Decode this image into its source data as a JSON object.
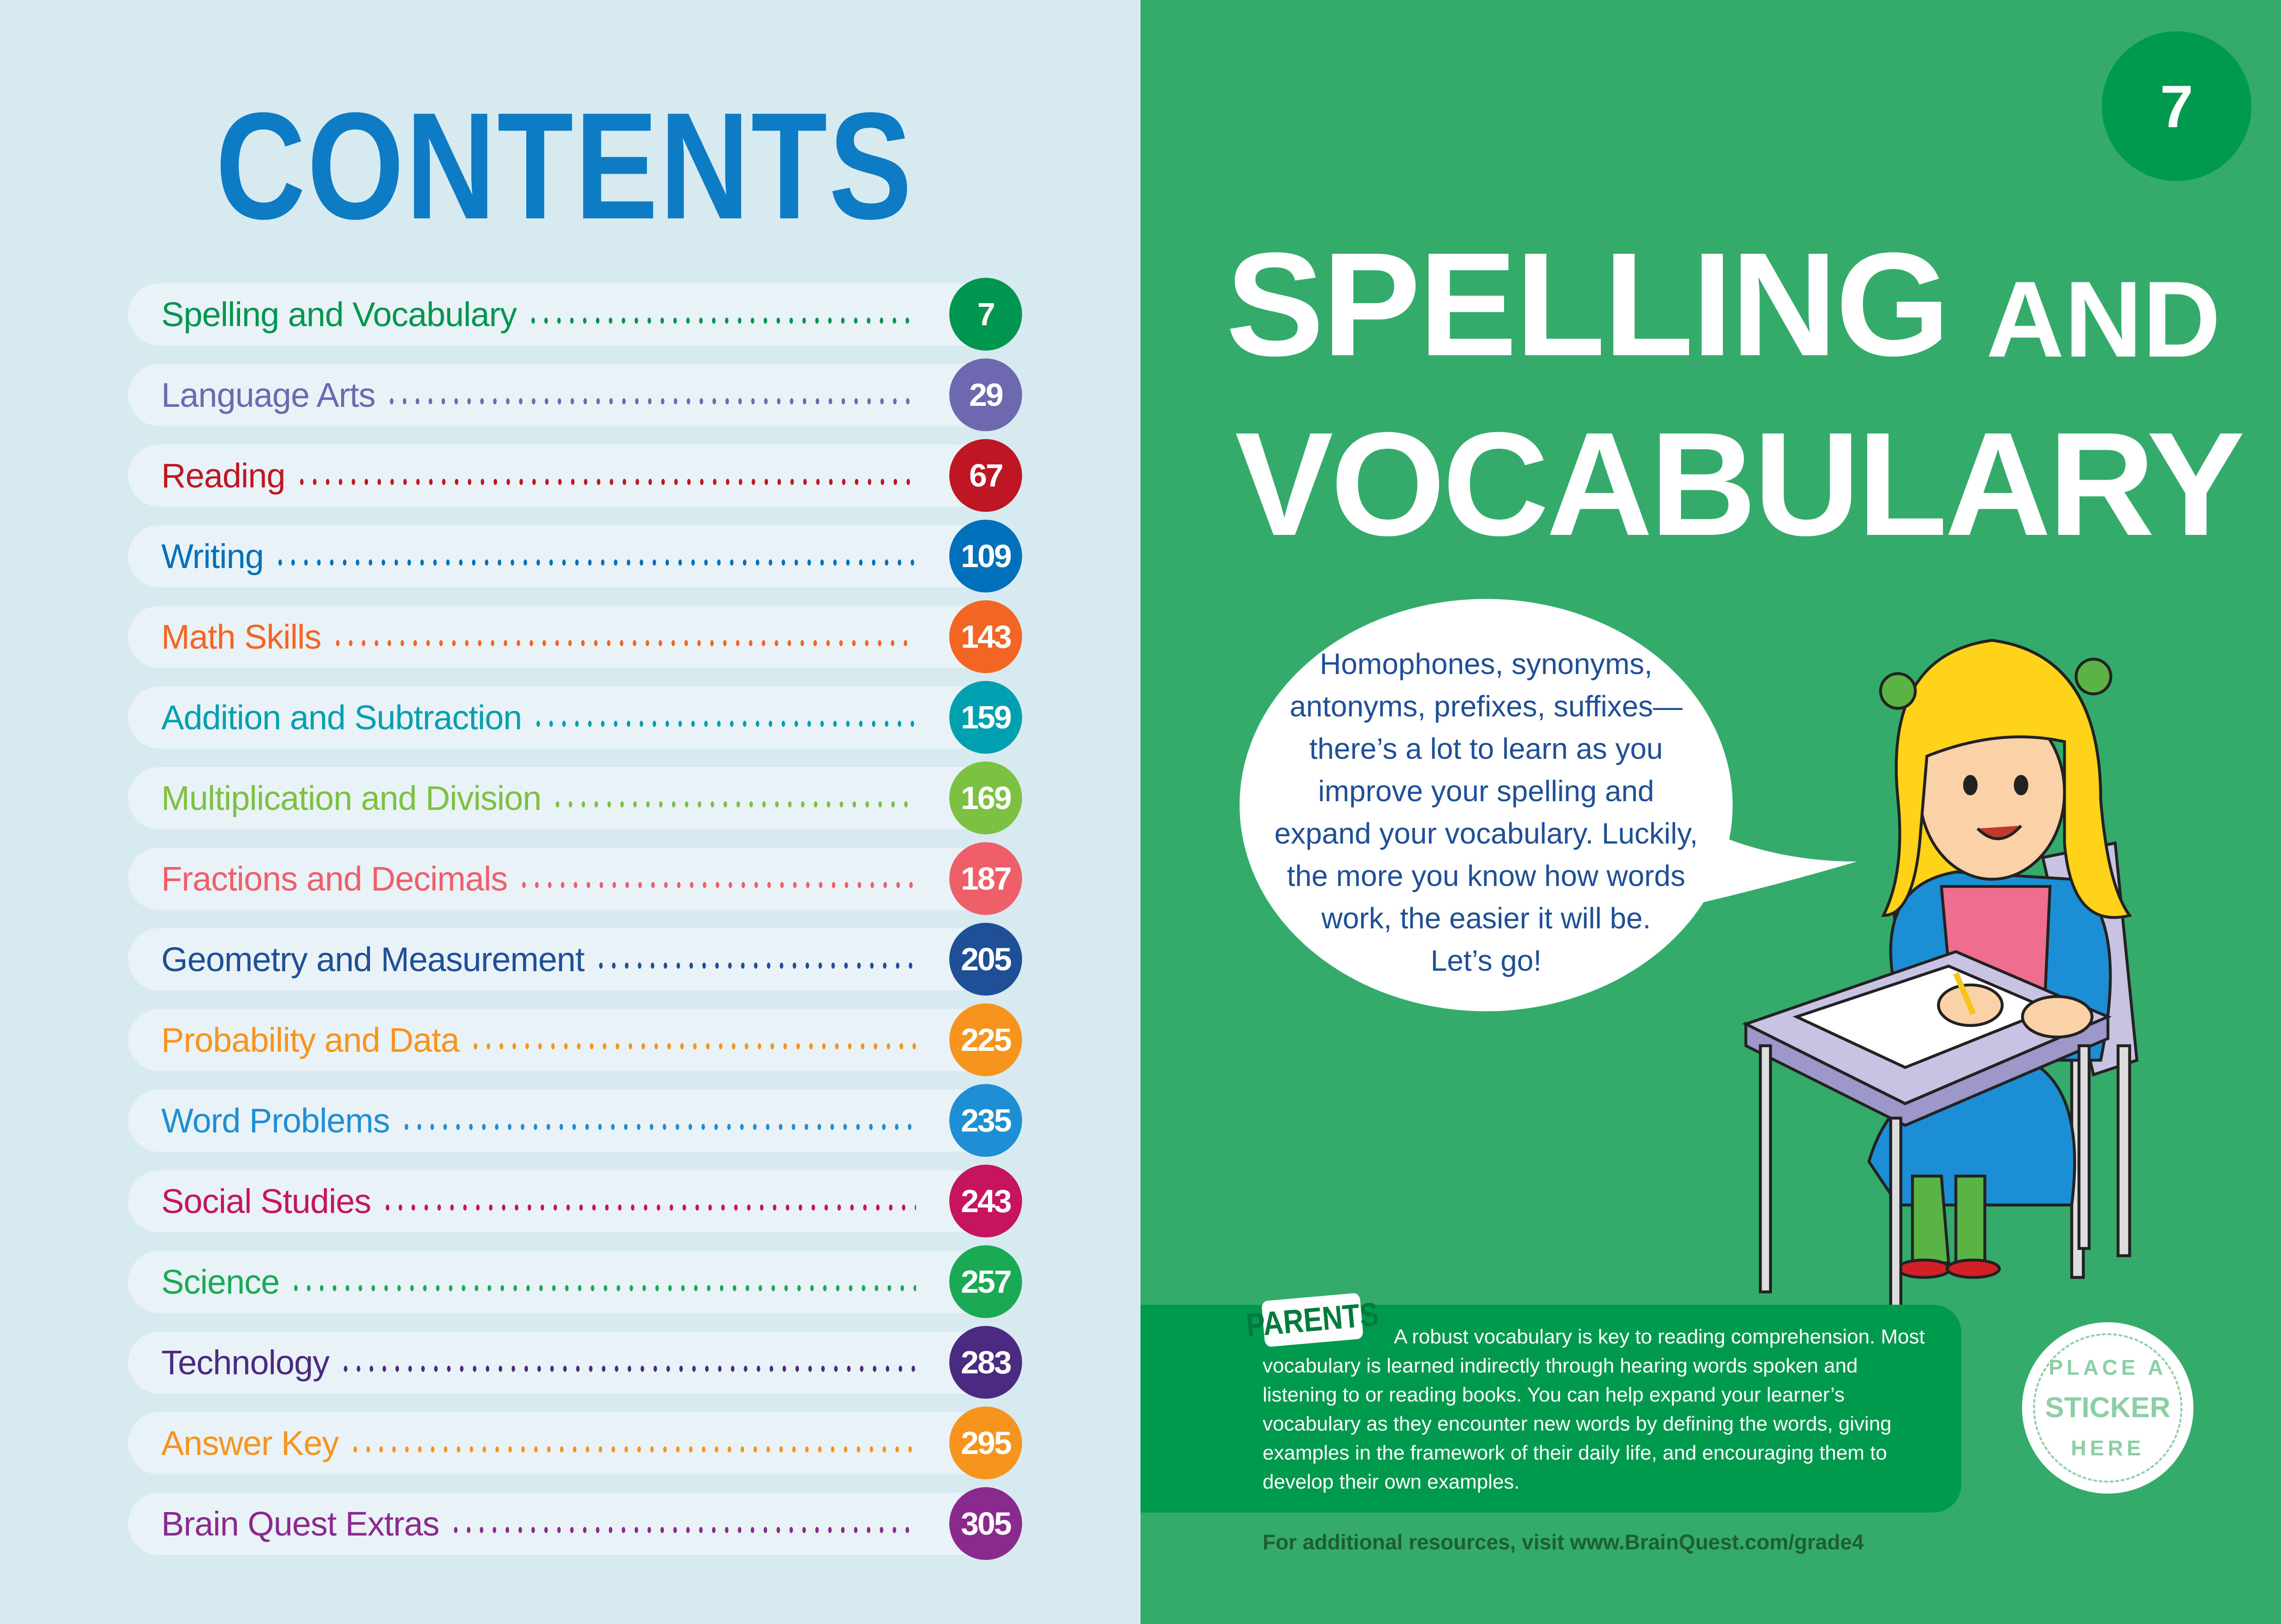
{
  "contents": {
    "title": "CONTENTS",
    "items": [
      {
        "label": "Spelling and Vocabulary",
        "page": "7",
        "color": "#00964f"
      },
      {
        "label": "Language Arts",
        "page": "29",
        "color": "#6e68b0"
      },
      {
        "label": "Reading",
        "page": "67",
        "color": "#be1622"
      },
      {
        "label": "Writing",
        "page": "109",
        "color": "#0070bb"
      },
      {
        "label": "Math Skills",
        "page": "143",
        "color": "#f26522"
      },
      {
        "label": "Addition and Subtraction",
        "page": "159",
        "color": "#00a0b0"
      },
      {
        "label": "Multiplication and Division",
        "page": "169",
        "color": "#7dc142"
      },
      {
        "label": "Fractions and Decimals",
        "page": "187",
        "color": "#ef5f6a"
      },
      {
        "label": "Geometry and Measurement",
        "page": "205",
        "color": "#1f4f96"
      },
      {
        "label": "Probability and Data",
        "page": "225",
        "color": "#f7941d"
      },
      {
        "label": "Word Problems",
        "page": "235",
        "color": "#1e8fd5"
      },
      {
        "label": "Social Studies",
        "page": "243",
        "color": "#c6145f"
      },
      {
        "label": "Science",
        "page": "257",
        "color": "#1aaa55"
      },
      {
        "label": "Technology",
        "page": "283",
        "color": "#4b2b82"
      },
      {
        "label": "Answer Key",
        "page": "295",
        "color": "#f7941d"
      },
      {
        "label": "Brain Quest Extras",
        "page": "305",
        "color": "#8a2a8f"
      }
    ]
  },
  "chapter": {
    "page_number": "7",
    "title_line1": "SPELLING",
    "title_and": "AND",
    "title_line2": "VOCABULARY",
    "speech_lines": [
      "Homophones, synonyms,",
      "antonyms, prefixes, suffixes—",
      "there’s a lot to learn as you",
      "improve your spelling and",
      "expand your vocabulary. Luckily,",
      "the more you know how words",
      "work, the easier it will be.",
      "Let’s go!"
    ],
    "parents_label": "PARENTS",
    "parents_text": "A robust vocabulary is key to reading comprehension. Most vocabulary is learned indirectly through hearing words spoken and listening to or reading books. You can help expand your learner’s vocabulary as they encounter new words by defining the words, giving examples in the framework of their daily life, and encouraging them to develop their own examples.",
    "sticker": {
      "top": "PLACE A",
      "middle": "STICKER",
      "bottom": "HERE"
    },
    "footer": "For additional resources, visit www.BrainQuest.com/grade4"
  },
  "colors": {
    "left_bg": "#d6eaf0",
    "right_bg": "#34ab6a",
    "title_blue": "#0d7cc4",
    "dark_green": "#009a4e"
  }
}
